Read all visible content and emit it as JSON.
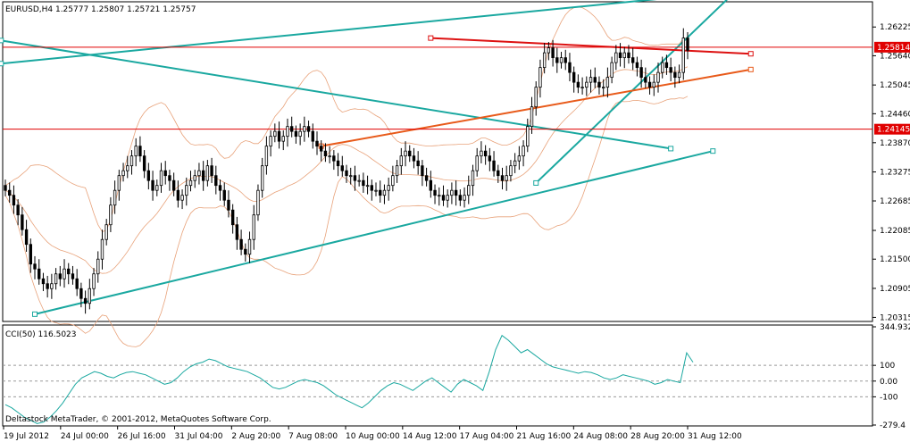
{
  "header": {
    "symbol_line": "EURUSD,H4  1.25777 1.25807 1.25721 1.25757",
    "cci_line": "CCI(50) 116.5023",
    "copyright": "Deltastock MetaTrader, © 2001-2012, MetaQuotes Software Corp."
  },
  "chart_data": {
    "type": "candlestick",
    "symbol": "EURUSD",
    "timeframe": "H4",
    "ohlc_current": {
      "open": 1.25777,
      "high": 1.25807,
      "low": 1.25721,
      "close": 1.25757
    },
    "price_ticks": [
      "1.26225",
      "1.25814",
      "1.25640",
      "1.25045",
      "1.24460",
      "1.24145",
      "1.23870",
      "1.23275",
      "1.22685",
      "1.22085",
      "1.21500",
      "1.20905",
      "1.20315"
    ],
    "price_tick_values": [
      1.26225,
      1.25814,
      1.2564,
      1.25045,
      1.2446,
      1.24145,
      1.2387,
      1.23275,
      1.22685,
      1.22085,
      1.215,
      1.20905,
      1.20315
    ],
    "price_range": [
      1.2025,
      1.2672
    ],
    "horizontal_levels": [
      {
        "label": "1.25814",
        "value": 1.25814,
        "color": "#e00000"
      },
      {
        "label": "1.24145",
        "value": 1.24145,
        "color": "#e00000"
      }
    ],
    "time_labels": [
      "19 Jul 2012",
      "24 Jul 00:00",
      "26 Jul 16:00",
      "31 Jul 04:00",
      "2 Aug 20:00",
      "7 Aug 08:00",
      "10 Aug 00:00",
      "14 Aug 12:00",
      "17 Aug 04:00",
      "21 Aug 16:00",
      "24 Aug 08:00",
      "28 Aug 20:00",
      "31 Aug 12:00"
    ],
    "closes": [
      1.229,
      1.228,
      1.226,
      1.224,
      1.221,
      1.218,
      1.214,
      1.213,
      1.211,
      1.21,
      1.209,
      1.21,
      1.212,
      1.211,
      1.213,
      1.212,
      1.211,
      1.209,
      1.207,
      1.206,
      1.209,
      1.212,
      1.215,
      1.219,
      1.222,
      1.226,
      1.229,
      1.232,
      1.233,
      1.234,
      1.236,
      1.238,
      1.236,
      1.233,
      1.231,
      1.229,
      1.23,
      1.233,
      1.232,
      1.231,
      1.229,
      1.227,
      1.228,
      1.23,
      1.231,
      1.232,
      1.233,
      1.231,
      1.234,
      1.232,
      1.23,
      1.229,
      1.227,
      1.225,
      1.222,
      1.219,
      1.217,
      1.216,
      1.219,
      1.224,
      1.229,
      1.234,
      1.238,
      1.24,
      1.241,
      1.239,
      1.24,
      1.242,
      1.241,
      1.24,
      1.241,
      1.242,
      1.241,
      1.239,
      1.238,
      1.237,
      1.236,
      1.236,
      1.235,
      1.234,
      1.233,
      1.232,
      1.232,
      1.231,
      1.231,
      1.23,
      1.23,
      1.229,
      1.229,
      1.228,
      1.229,
      1.23,
      1.232,
      1.234,
      1.236,
      1.237,
      1.236,
      1.235,
      1.234,
      1.232,
      1.231,
      1.229,
      1.228,
      1.228,
      1.227,
      1.228,
      1.229,
      1.228,
      1.227,
      1.228,
      1.23,
      1.233,
      1.236,
      1.237,
      1.236,
      1.235,
      1.233,
      1.232,
      1.231,
      1.232,
      1.234,
      1.235,
      1.236,
      1.238,
      1.242,
      1.246,
      1.25,
      1.254,
      1.257,
      1.258,
      1.256,
      1.255,
      1.256,
      1.255,
      1.253,
      1.251,
      1.25,
      1.25,
      1.251,
      1.252,
      1.251,
      1.25,
      1.25,
      1.252,
      1.255,
      1.257,
      1.256,
      1.257,
      1.256,
      1.255,
      1.254,
      1.252,
      1.251,
      1.25,
      1.251,
      1.253,
      1.255,
      1.254,
      1.253,
      1.252,
      1.253,
      1.26,
      1.2575
    ],
    "cci": {
      "name": "CCI(50)",
      "current": 116.5023,
      "ticks": [
        "344.932",
        "100",
        "0.00",
        "-100",
        "-279.4"
      ],
      "tick_values": [
        344.932,
        100,
        0,
        -100,
        -279.4
      ],
      "levels": [
        100,
        0,
        -100
      ],
      "values": [
        -150,
        -170,
        -200,
        -230,
        -250,
        -270,
        -260,
        -230,
        -190,
        -140,
        -80,
        -20,
        20,
        40,
        60,
        50,
        30,
        20,
        40,
        55,
        60,
        50,
        40,
        20,
        0,
        -20,
        -10,
        20,
        60,
        90,
        110,
        120,
        140,
        130,
        110,
        90,
        80,
        70,
        60,
        40,
        20,
        -10,
        -40,
        -50,
        -40,
        -20,
        0,
        10,
        0,
        -10,
        -30,
        -60,
        -90,
        -110,
        -130,
        -150,
        -170,
        -140,
        -100,
        -60,
        -30,
        -10,
        -20,
        -40,
        -60,
        -30,
        0,
        20,
        -10,
        -40,
        -70,
        -20,
        10,
        -10,
        -30,
        -60,
        60,
        200,
        290,
        260,
        220,
        180,
        200,
        170,
        140,
        110,
        90,
        80,
        70,
        60,
        50,
        60,
        55,
        40,
        20,
        10,
        20,
        40,
        30,
        20,
        10,
        0,
        -20,
        -10,
        10,
        0,
        -10,
        180,
        120
      ]
    }
  }
}
